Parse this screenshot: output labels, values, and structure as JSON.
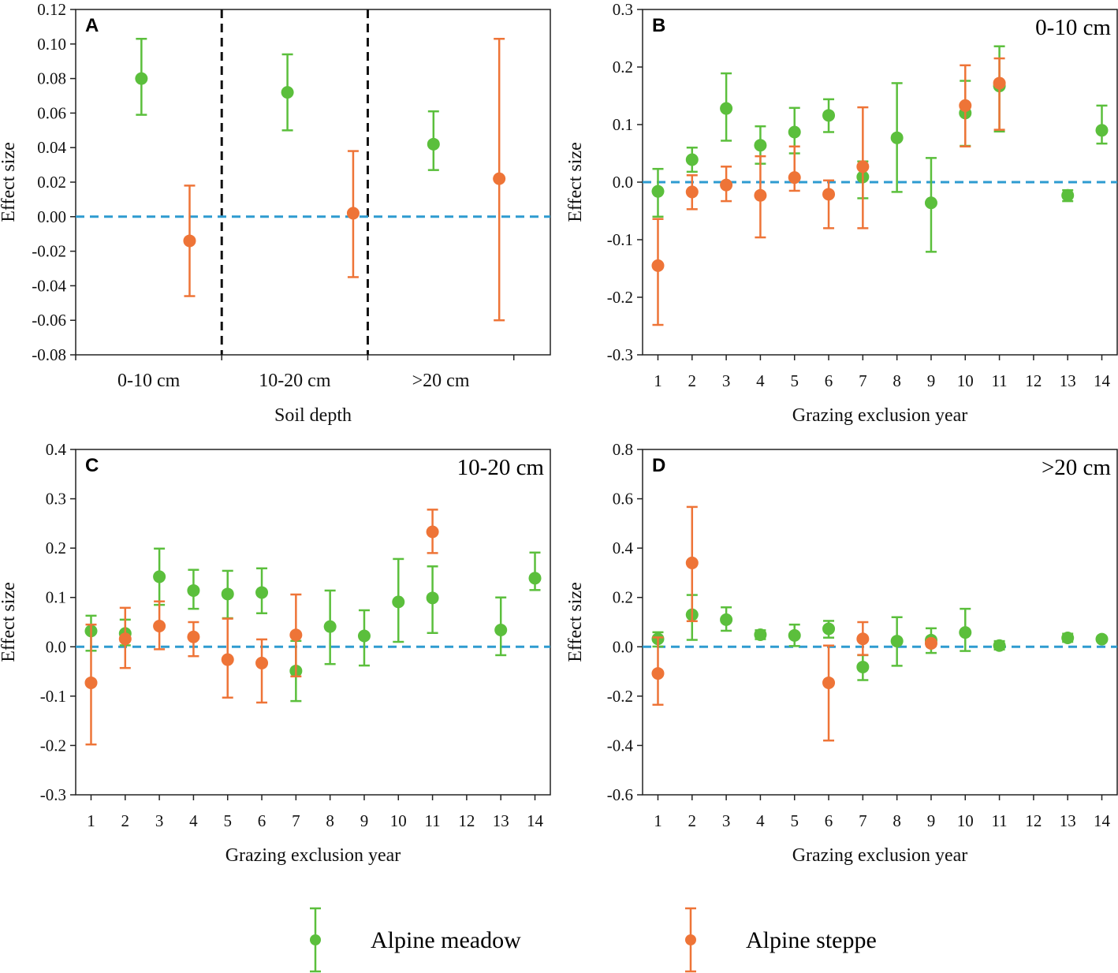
{
  "colors": {
    "meadow": "#5BBF3C",
    "steppe": "#EE7437",
    "zero_line": "#2E9BD0",
    "divider": "#111111"
  },
  "legend": {
    "meadow_label": "Alpine meadow",
    "steppe_label": "Alpine steppe"
  },
  "chart_data": [
    {
      "type": "scatter",
      "panel": "A",
      "title": "",
      "xlabel": "Soil depth",
      "ylabel": "Effect size",
      "categories": [
        "0-10 cm",
        "10-20 cm",
        ">20 cm"
      ],
      "ylim": [
        -0.08,
        0.12
      ],
      "yticks": [
        -0.08,
        -0.06,
        -0.04,
        -0.02,
        0.0,
        0.02,
        0.04,
        0.06,
        0.08,
        0.1,
        0.12
      ],
      "yticklabels": [
        "-0.08",
        "-0.06",
        "-0.04",
        "-0.02",
        "0.00",
        "0.02",
        "0.04",
        "0.06",
        "0.08",
        "0.10",
        "0.12"
      ],
      "series": [
        {
          "name": "Alpine meadow",
          "x": [
            0.7,
            1.7,
            2.7
          ],
          "y": [
            0.08,
            0.072,
            0.042
          ],
          "lo": [
            0.059,
            0.05,
            0.027
          ],
          "hi": [
            0.103,
            0.094,
            0.061
          ]
        },
        {
          "name": "Alpine steppe",
          "x": [
            1.03,
            2.15,
            3.15
          ],
          "y": [
            -0.014,
            0.002,
            0.022
          ],
          "lo": [
            -0.046,
            -0.035,
            -0.06
          ],
          "hi": [
            0.018,
            0.038,
            0.103
          ]
        }
      ]
    },
    {
      "type": "scatter",
      "panel": "B",
      "title": "0-10 cm",
      "xlabel": "Grazing exclusion year",
      "ylabel": "Effect size",
      "categories": [
        "1",
        "2",
        "3",
        "4",
        "5",
        "6",
        "7",
        "8",
        "9",
        "10",
        "11",
        "12",
        "13",
        "14"
      ],
      "ylim": [
        -0.3,
        0.3
      ],
      "yticks": [
        -0.3,
        -0.2,
        -0.1,
        0.0,
        0.1,
        0.2,
        0.3
      ],
      "yticklabels": [
        "-0.3",
        "-0.2",
        "-0.1",
        "0.0",
        "0.1",
        "0.2",
        "0.3"
      ],
      "series": [
        {
          "name": "Alpine meadow",
          "x": [
            1,
            2,
            3,
            4,
            5,
            6,
            7,
            8,
            9,
            10,
            11,
            13,
            14
          ],
          "y": [
            -0.016,
            0.039,
            0.128,
            0.064,
            0.087,
            0.116,
            0.009,
            0.077,
            -0.036,
            0.12,
            0.167,
            -0.023,
            0.09
          ],
          "lo": [
            -0.06,
            0.018,
            0.072,
            0.032,
            0.05,
            0.087,
            -0.028,
            -0.017,
            -0.121,
            0.063,
            0.088,
            -0.033,
            0.067
          ],
          "hi": [
            0.023,
            0.06,
            0.189,
            0.097,
            0.129,
            0.144,
            0.036,
            0.172,
            0.042,
            0.176,
            0.236,
            -0.014,
            0.133
          ]
        },
        {
          "name": "Alpine steppe",
          "x": [
            1,
            2,
            3,
            4,
            5,
            6,
            7,
            10,
            11
          ],
          "y": [
            -0.145,
            -0.017,
            -0.005,
            -0.023,
            0.008,
            -0.021,
            0.027,
            0.133,
            0.172
          ],
          "lo": [
            -0.248,
            -0.047,
            -0.033,
            -0.096,
            -0.015,
            -0.08,
            -0.08,
            0.062,
            0.091
          ],
          "hi": [
            -0.064,
            0.012,
            0.027,
            0.045,
            0.062,
            0.003,
            0.13,
            0.203,
            0.215
          ]
        }
      ]
    },
    {
      "type": "scatter",
      "panel": "C",
      "title": "10-20 cm",
      "xlabel": "Grazing exclusion year",
      "ylabel": "Effect size",
      "categories": [
        "1",
        "2",
        "3",
        "4",
        "5",
        "6",
        "7",
        "8",
        "9",
        "10",
        "11",
        "12",
        "13",
        "14"
      ],
      "ylim": [
        -0.3,
        0.4
      ],
      "yticks": [
        -0.3,
        -0.2,
        -0.1,
        0.0,
        0.1,
        0.2,
        0.3,
        0.4
      ],
      "yticklabels": [
        "-0.3",
        "-0.2",
        "-0.1",
        "0.0",
        "0.1",
        "0.2",
        "0.3",
        "0.4"
      ],
      "series": [
        {
          "name": "Alpine meadow",
          "x": [
            1,
            2,
            3,
            4,
            5,
            6,
            7,
            8,
            9,
            10,
            11,
            13,
            14
          ],
          "y": [
            0.032,
            0.027,
            0.142,
            0.114,
            0.107,
            0.11,
            -0.049,
            0.041,
            0.022,
            0.091,
            0.099,
            0.034,
            0.139
          ],
          "lo": [
            -0.008,
            0.003,
            0.085,
            0.077,
            0.058,
            0.068,
            -0.11,
            -0.035,
            -0.038,
            0.01,
            0.028,
            -0.017,
            0.115
          ],
          "hi": [
            0.063,
            0.055,
            0.199,
            0.156,
            0.154,
            0.159,
            0.012,
            0.114,
            0.074,
            0.178,
            0.163,
            0.1,
            0.191
          ]
        },
        {
          "name": "Alpine steppe",
          "x": [
            1,
            2,
            3,
            4,
            5,
            6,
            7,
            11
          ],
          "y": [
            -0.073,
            0.016,
            0.042,
            0.02,
            -0.026,
            -0.033,
            0.024,
            0.233
          ],
          "lo": [
            -0.198,
            -0.043,
            -0.005,
            -0.019,
            -0.103,
            -0.113,
            -0.06,
            0.19
          ],
          "hi": [
            0.045,
            0.079,
            0.092,
            0.05,
            0.057,
            0.015,
            0.106,
            0.278
          ]
        }
      ]
    },
    {
      "type": "scatter",
      "panel": "D",
      "title": ">20 cm",
      "xlabel": "Grazing exclusion year",
      "ylabel": "Effect size",
      "categories": [
        "1",
        "2",
        "3",
        "4",
        "5",
        "6",
        "7",
        "8",
        "9",
        "10",
        "11",
        "12",
        "13",
        "14"
      ],
      "ylim": [
        -0.6,
        0.8
      ],
      "yticks": [
        -0.6,
        -0.4,
        -0.2,
        0.0,
        0.2,
        0.4,
        0.6,
        0.8
      ],
      "yticklabels": [
        "-0.6",
        "-0.4",
        "-0.2",
        "0.0",
        "0.2",
        "0.4",
        "0.6",
        "0.8"
      ],
      "series": [
        {
          "name": "Alpine meadow",
          "x": [
            1,
            2,
            3,
            4,
            5,
            6,
            7,
            8,
            9,
            10,
            11,
            13,
            14
          ],
          "y": [
            0.032,
            0.13,
            0.11,
            0.049,
            0.046,
            0.073,
            -0.082,
            0.023,
            0.027,
            0.058,
            0.005,
            0.036,
            0.031
          ],
          "lo": [
            0.001,
            0.028,
            0.065,
            0.031,
            0.003,
            0.037,
            -0.135,
            -0.077,
            -0.025,
            -0.017,
            -0.011,
            0.02,
            0.023
          ],
          "hi": [
            0.059,
            0.21,
            0.16,
            0.067,
            0.09,
            0.105,
            -0.034,
            0.12,
            0.075,
            0.154,
            0.023,
            0.053,
            0.04
          ]
        },
        {
          "name": "Alpine steppe",
          "x": [
            1,
            2,
            6,
            7,
            9
          ],
          "y": [
            -0.108,
            0.34,
            -0.146,
            0.032,
            0.014
          ],
          "lo": [
            -0.235,
            0.104,
            -0.38,
            -0.033,
            0.003
          ],
          "hi": [
            0.038,
            0.567,
            0.005,
            0.1,
            0.026
          ]
        }
      ]
    }
  ]
}
